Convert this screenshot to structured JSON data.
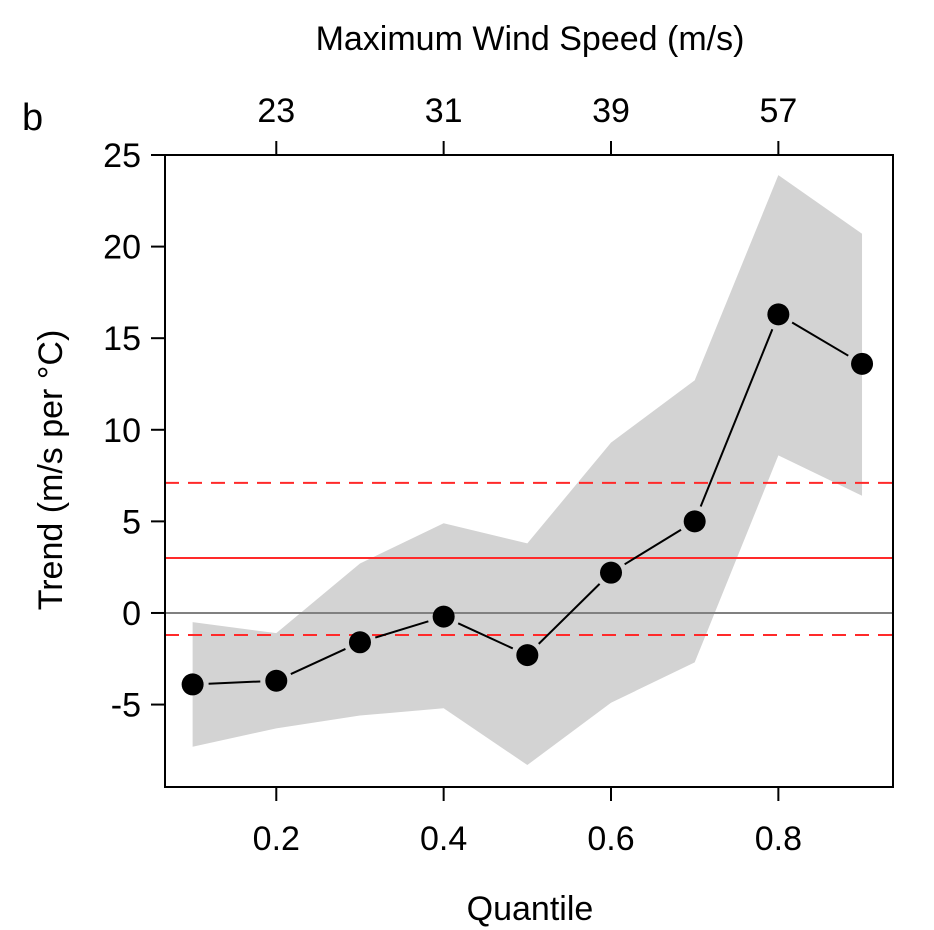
{
  "panel_label": "b",
  "chart_data": {
    "type": "line",
    "title": "",
    "xlabel": "Quantile",
    "ylabel": "Trend (m/s per °C)",
    "top_axis": {
      "label": "Maximum Wind Speed (m/s)",
      "ticks": [
        {
          "at": 0.2,
          "label": "23"
        },
        {
          "at": 0.4,
          "label": "31"
        },
        {
          "at": 0.6,
          "label": "39"
        },
        {
          "at": 0.8,
          "label": "57"
        }
      ]
    },
    "xlim": [
      0.067,
      0.937
    ],
    "ylim": [
      -9.5,
      25
    ],
    "xticks": [
      0.2,
      0.4,
      0.6,
      0.8
    ],
    "xtick_labels": [
      "0.2",
      "0.4",
      "0.6",
      "0.8"
    ],
    "yticks": [
      -5,
      0,
      5,
      10,
      15,
      20,
      25
    ],
    "ytick_labels": [
      "-5",
      "0",
      "5",
      "10",
      "15",
      "20",
      "25"
    ],
    "grid": false,
    "series": [
      {
        "type": "line-markers",
        "x": [
          0.1,
          0.2,
          0.3,
          0.4,
          0.5,
          0.6,
          0.7,
          0.8,
          0.9
        ],
        "values": [
          -3.9,
          -3.7,
          -1.6,
          -0.2,
          -2.3,
          2.2,
          5.0,
          16.3,
          13.6
        ],
        "color": "#000000"
      }
    ],
    "confidence_band": {
      "x": [
        0.1,
        0.2,
        0.3,
        0.4,
        0.5,
        0.6,
        0.7,
        0.8,
        0.9
      ],
      "lower": [
        -7.3,
        -6.3,
        -5.6,
        -5.2,
        -8.3,
        -4.9,
        -2.7,
        8.6,
        6.4
      ],
      "upper": [
        -0.5,
        -1.1,
        2.7,
        4.9,
        3.8,
        9.3,
        12.7,
        23.9,
        20.7
      ],
      "color": "#d3d3d3"
    },
    "reference_lines": [
      {
        "y": 0,
        "style": "solid",
        "color": "#808080"
      },
      {
        "y": 3.0,
        "style": "solid",
        "color": "#ff2a2a"
      },
      {
        "y": 7.1,
        "style": "dashed",
        "color": "#ff2a2a"
      },
      {
        "y": -1.2,
        "style": "dashed",
        "color": "#ff2a2a"
      }
    ]
  }
}
